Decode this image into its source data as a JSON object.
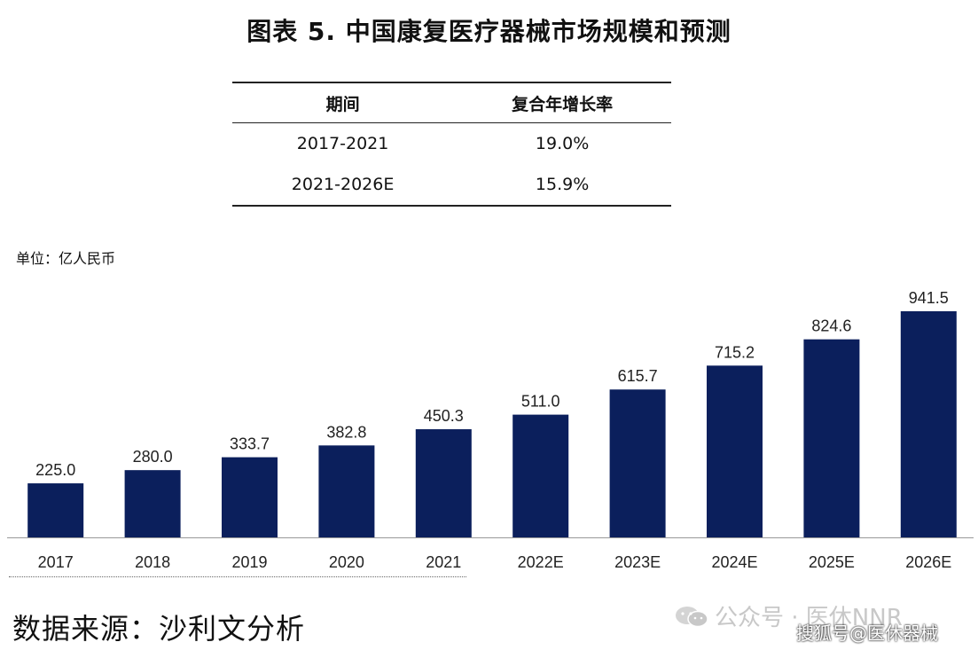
{
  "title": "图表 5. 中国康复医疗器械市场规模和预测",
  "cagr_table": {
    "headers": [
      "期间",
      "复合年增长率"
    ],
    "rows": [
      {
        "period": "2017-2021",
        "rate": "19.0%"
      },
      {
        "period": "2021-2026E",
        "rate": "15.9%"
      }
    ]
  },
  "unit_label": "单位：亿人民币",
  "source": "数据来源：沙利文分析",
  "watermark": {
    "line1": "公众号 · 医休NNR",
    "line2": "搜狐号@医休器械"
  },
  "colors": {
    "bar": "#0b1f5c",
    "axis": "#999999"
  },
  "chart_data": {
    "type": "bar",
    "categories": [
      "2017",
      "2018",
      "2019",
      "2020",
      "2021",
      "2022E",
      "2023E",
      "2024E",
      "2025E",
      "2026E"
    ],
    "values": [
      225.0,
      280.0,
      333.7,
      382.8,
      450.3,
      511.0,
      615.7,
      715.2,
      824.6,
      941.5
    ],
    "data_labels": [
      "225.0",
      "280.0",
      "333.7",
      "382.8",
      "450.3",
      "511.0",
      "615.7",
      "715.2",
      "824.6",
      "941.5"
    ],
    "title": "",
    "xlabel": "",
    "ylabel": "",
    "grid": false,
    "legend": "none"
  }
}
